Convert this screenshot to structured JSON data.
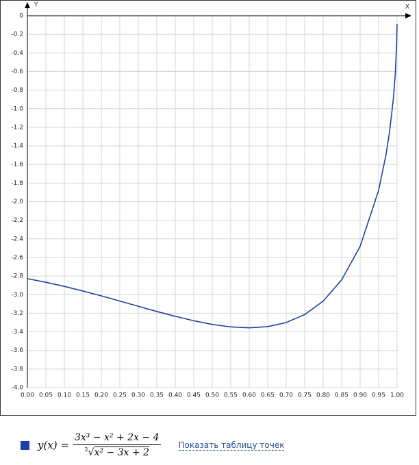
{
  "chart_data": {
    "type": "line",
    "x_label": "X",
    "y_label": "Y",
    "x": [
      0,
      0.05,
      0.1,
      0.15,
      0.2,
      0.25,
      0.3,
      0.35,
      0.4,
      0.45,
      0.5,
      0.55,
      0.6,
      0.65,
      0.7,
      0.75,
      0.8,
      0.85,
      0.9,
      0.95,
      0.97,
      0.98,
      0.99,
      0.995,
      0.999,
      0.9999
    ],
    "series": [
      {
        "color": "#1f3fa8",
        "values": [
          -2.828,
          -2.867,
          -2.911,
          -2.961,
          -3.013,
          -3.069,
          -3.125,
          -3.181,
          -3.233,
          -3.281,
          -3.32,
          -3.347,
          -3.357,
          -3.344,
          -3.3,
          -3.214,
          -3.07,
          -2.841,
          -2.481,
          -1.878,
          -1.495,
          -1.238,
          -0.888,
          -0.632,
          -0.284,
          -0.09
        ]
      }
    ],
    "xlim": [
      0,
      1
    ],
    "ylim": [
      -4,
      0
    ],
    "xticks": [
      {
        "value": 0,
        "label": "0.00"
      },
      {
        "value": 0.05,
        "label": "0.05"
      },
      {
        "value": 0.1,
        "label": "0.10"
      },
      {
        "value": 0.15,
        "label": "0.15"
      },
      {
        "value": 0.2,
        "label": "0.20"
      },
      {
        "value": 0.25,
        "label": "0.25"
      },
      {
        "value": 0.3,
        "label": "0.30"
      },
      {
        "value": 0.35,
        "label": "0.35"
      },
      {
        "value": 0.4,
        "label": "0.40"
      },
      {
        "value": 0.45,
        "label": "0.45"
      },
      {
        "value": 0.5,
        "label": "0.50"
      },
      {
        "value": 0.55,
        "label": "0.55"
      },
      {
        "value": 0.6,
        "label": "0.60"
      },
      {
        "value": 0.65,
        "label": "0.65"
      },
      {
        "value": 0.7,
        "label": "0.70"
      },
      {
        "value": 0.75,
        "label": "0.75"
      },
      {
        "value": 0.8,
        "label": "0.80"
      },
      {
        "value": 0.85,
        "label": "0.85"
      },
      {
        "value": 0.9,
        "label": "0.90"
      },
      {
        "value": 0.95,
        "label": "0.95"
      },
      {
        "value": 1,
        "label": "1.00"
      }
    ],
    "yticks": [
      0,
      -0.2,
      -0.4,
      -0.6,
      -0.8,
      {
        "value": -1,
        "label": "-1.0"
      },
      -1.2,
      -1.4,
      -1.6,
      -1.8,
      {
        "value": -2,
        "label": "-2.0"
      },
      -2.2,
      -2.4,
      -2.6,
      -2.8,
      {
        "value": -3,
        "label": "-3.0"
      },
      -3.2,
      -3.4,
      -3.6,
      -3.8,
      {
        "value": -4,
        "label": "-4.0"
      }
    ],
    "grid": true
  },
  "legend": {
    "lhs": "y(x) =",
    "numerator": "3x³ − x² + 2x − 4",
    "root_index": "2",
    "radicand": "x² − 3x + 2",
    "link": "Показать таблицу точек"
  }
}
